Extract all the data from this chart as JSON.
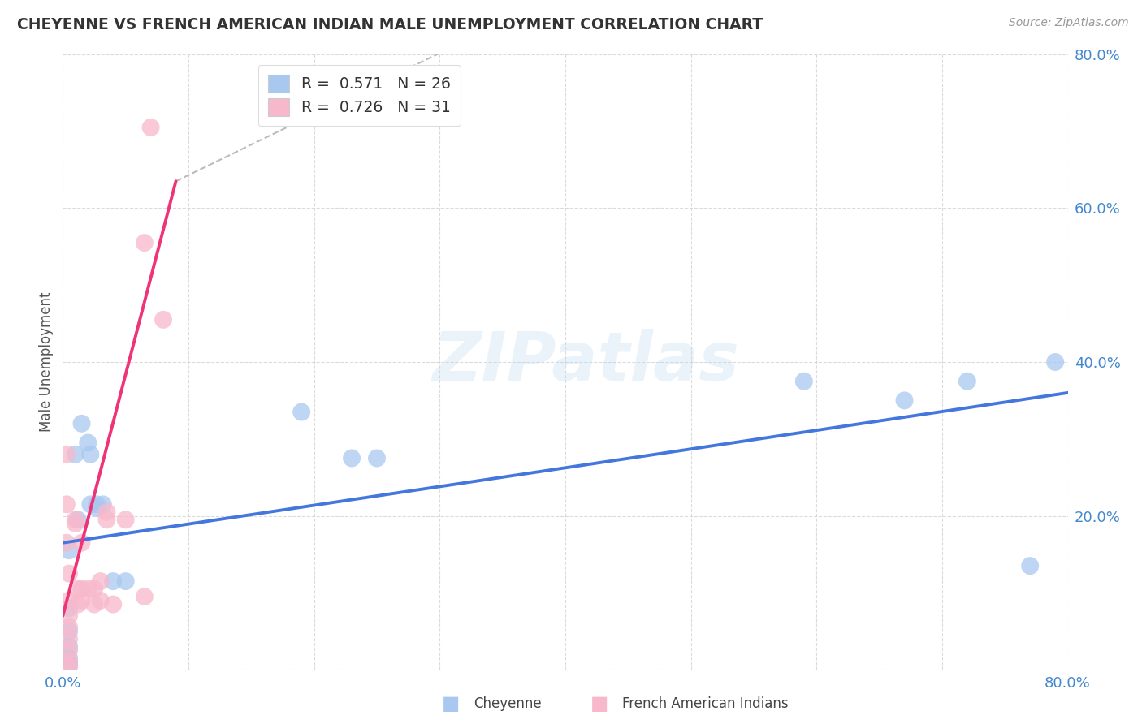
{
  "title": "CHEYENNE VS FRENCH AMERICAN INDIAN MALE UNEMPLOYMENT CORRELATION CHART",
  "source": "Source: ZipAtlas.com",
  "ylabel": "Male Unemployment",
  "xlim": [
    0.0,
    0.8
  ],
  "ylim": [
    0.0,
    0.8
  ],
  "watermark": "ZIPatlas",
  "cheyenne_color": "#a8c8f0",
  "french_color": "#f8b8cc",
  "line_cheyenne_color": "#4477dd",
  "line_french_color": "#ee3377",
  "bg_color": "#ffffff",
  "grid_color": "#cccccc",
  "title_color": "#333333",
  "axis_label_color": "#4488cc",
  "source_color": "#999999",
  "cheyenne_scatter": [
    [
      0.005,
      0.155
    ],
    [
      0.005,
      0.08
    ],
    [
      0.005,
      0.05
    ],
    [
      0.005,
      0.03
    ],
    [
      0.005,
      0.015
    ],
    [
      0.005,
      0.008
    ],
    [
      0.005,
      0.005
    ],
    [
      0.01,
      0.28
    ],
    [
      0.012,
      0.195
    ],
    [
      0.015,
      0.32
    ],
    [
      0.02,
      0.295
    ],
    [
      0.022,
      0.28
    ],
    [
      0.022,
      0.215
    ],
    [
      0.027,
      0.215
    ],
    [
      0.027,
      0.21
    ],
    [
      0.032,
      0.215
    ],
    [
      0.04,
      0.115
    ],
    [
      0.05,
      0.115
    ],
    [
      0.19,
      0.335
    ],
    [
      0.23,
      0.275
    ],
    [
      0.25,
      0.275
    ],
    [
      0.59,
      0.375
    ],
    [
      0.67,
      0.35
    ],
    [
      0.72,
      0.375
    ],
    [
      0.77,
      0.135
    ],
    [
      0.79,
      0.4
    ]
  ],
  "french_scatter": [
    [
      0.003,
      0.28
    ],
    [
      0.003,
      0.215
    ],
    [
      0.003,
      0.165
    ],
    [
      0.005,
      0.125
    ],
    [
      0.005,
      0.09
    ],
    [
      0.005,
      0.07
    ],
    [
      0.005,
      0.055
    ],
    [
      0.005,
      0.04
    ],
    [
      0.005,
      0.025
    ],
    [
      0.005,
      0.01
    ],
    [
      0.005,
      0.005
    ],
    [
      0.01,
      0.195
    ],
    [
      0.01,
      0.19
    ],
    [
      0.012,
      0.105
    ],
    [
      0.012,
      0.085
    ],
    [
      0.015,
      0.165
    ],
    [
      0.015,
      0.105
    ],
    [
      0.015,
      0.09
    ],
    [
      0.02,
      0.105
    ],
    [
      0.025,
      0.105
    ],
    [
      0.025,
      0.085
    ],
    [
      0.03,
      0.115
    ],
    [
      0.03,
      0.09
    ],
    [
      0.035,
      0.205
    ],
    [
      0.035,
      0.195
    ],
    [
      0.05,
      0.195
    ],
    [
      0.065,
      0.555
    ],
    [
      0.07,
      0.705
    ],
    [
      0.08,
      0.455
    ],
    [
      0.065,
      0.095
    ],
    [
      0.04,
      0.085
    ]
  ],
  "cheyenne_line": [
    0.0,
    0.165,
    0.8,
    0.36
  ],
  "french_line_solid": [
    0.0,
    0.07,
    0.09,
    0.635
  ],
  "french_line_dash": [
    0.09,
    0.635,
    0.38,
    0.865
  ]
}
